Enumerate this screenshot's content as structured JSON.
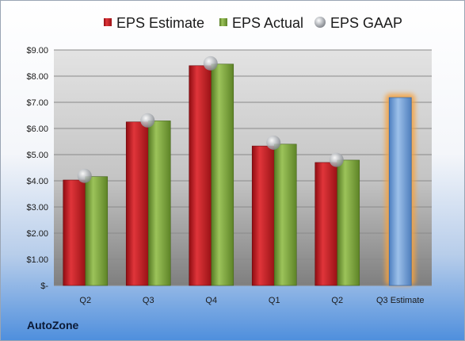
{
  "footer": {
    "company": "AutoZone"
  },
  "colors": {
    "estimate": "#c8181e",
    "actual": "#7aa33a",
    "gaap": "#a6a9ad",
    "future": "#6f9fd6",
    "glow": "#f6a341"
  },
  "chart_data": {
    "type": "bar",
    "categories": [
      "Q2",
      "Q3",
      "Q4",
      "Q1",
      "Q2",
      "Q3 Estimate"
    ],
    "series": [
      {
        "name": "EPS Estimate",
        "values": [
          4.03,
          6.25,
          8.4,
          5.33,
          4.7,
          7.18
        ]
      },
      {
        "name": "EPS Actual",
        "values": [
          4.16,
          6.29,
          8.46,
          5.4,
          4.79,
          null
        ]
      },
      {
        "name": "EPS GAAP",
        "values": [
          4.19,
          6.31,
          8.49,
          5.46,
          4.8,
          null
        ]
      }
    ],
    "ylim": [
      0,
      9
    ],
    "ytick_labels": [
      "$-",
      "$1.00",
      "$2.00",
      "$3.00",
      "$4.00",
      "$5.00",
      "$6.00",
      "$7.00",
      "$8.00",
      "$9.00"
    ],
    "legend_position": "top",
    "grid": true
  }
}
